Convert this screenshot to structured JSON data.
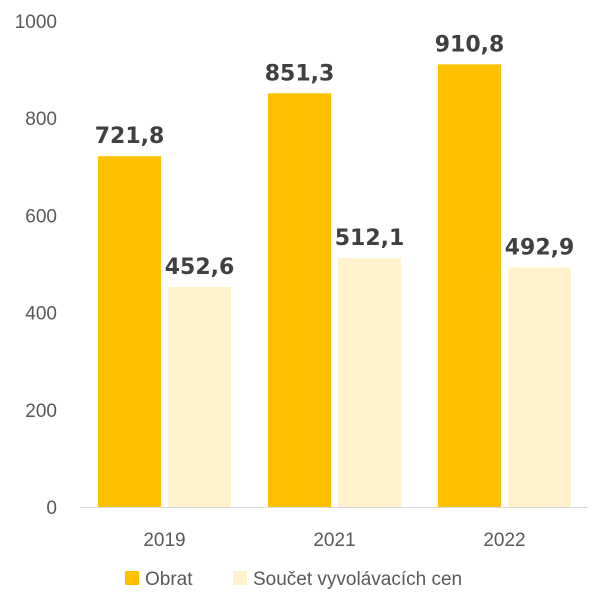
{
  "chart_data": {
    "type": "bar",
    "categories": [
      "2019",
      "2021",
      "2022"
    ],
    "series": [
      {
        "name": "Obrat",
        "values": [
          721.8,
          851.3,
          910.8
        ],
        "labels": [
          "721,8",
          "851,3",
          "910,8"
        ],
        "color": "#FFC000"
      },
      {
        "name": "Součet vyvolávacích cen",
        "values": [
          452.6,
          512.1,
          492.9
        ],
        "labels": [
          "452,6",
          "512,1",
          "492,9"
        ],
        "color": "#FFF2CC"
      }
    ],
    "ylim": [
      0,
      1000
    ],
    "yticks": [
      0,
      200,
      400,
      600,
      800,
      1000
    ],
    "grid": false,
    "legend_position": "bottom"
  }
}
